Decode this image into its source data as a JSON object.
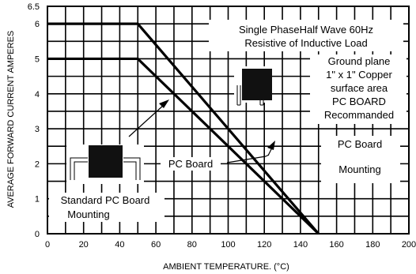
{
  "chart_data": {
    "type": "line",
    "xlabel": "AMBIENT TEMPERATURE. (°C)",
    "ylabel": "AVERAGE FORWARD CURRENT AMPERES",
    "xlim": [
      0,
      200
    ],
    "ylim": [
      0,
      6.5
    ],
    "x_ticks": [
      "0",
      "20",
      "40",
      "60",
      "80",
      "100",
      "120",
      "140",
      "160",
      "180",
      "200"
    ],
    "y_ticks": [
      "0",
      "1",
      "2",
      "3",
      "4",
      "5",
      "6",
      "6.5"
    ],
    "grid": true,
    "series": [
      {
        "x": [
          0,
          50,
          150
        ],
        "y": [
          6,
          6,
          0
        ]
      },
      {
        "x": [
          0,
          50,
          150
        ],
        "y": [
          5,
          5,
          0
        ]
      }
    ],
    "annotations": {
      "load_line1": "Single PhaseHalf Wave 60Hz",
      "load_line2": "Resistive of Inductive Load",
      "gp_line1": "Ground plane",
      "gp_line2": "1\" x 1\" Copper",
      "gp_line3": "surface area",
      "gp_line4": "PC BOARD",
      "gp_line5": "Recommanded",
      "pc_board_center": "PC Board",
      "pc_board_right1": "PC Board",
      "pc_board_right2": "Mounting",
      "standard_line1": "Standard PC Board",
      "standard_line2": "Mounting"
    }
  }
}
